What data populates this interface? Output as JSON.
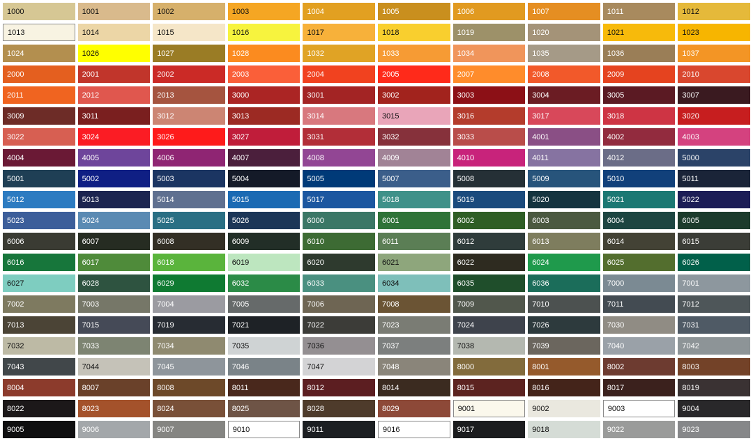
{
  "rows": [
    [
      {
        "code": "1000",
        "color": "#d6c794",
        "dark": true
      },
      {
        "code": "1001",
        "color": "#d9ba8c",
        "dark": true
      },
      {
        "code": "1002",
        "color": "#d6b06b",
        "dark": true
      },
      {
        "code": "1003",
        "color": "#f5a623",
        "dark": true
      },
      {
        "code": "1004",
        "color": "#e2a021"
      },
      {
        "code": "1005",
        "color": "#c98f1e"
      },
      {
        "code": "1006",
        "color": "#e19a20"
      },
      {
        "code": "1007",
        "color": "#e58e22"
      },
      {
        "code": "1011",
        "color": "#a88a5e"
      },
      {
        "code": "1012",
        "color": "#e5b93a",
        "dark": true
      }
    ],
    [
      {
        "code": "1013",
        "color": "#f8f3e2",
        "dark": true,
        "bordered": true
      },
      {
        "code": "1014",
        "color": "#ecd6a6",
        "dark": true
      },
      {
        "code": "1015",
        "color": "#f5e6c8",
        "dark": true
      },
      {
        "code": "1016",
        "color": "#f7f33e",
        "dark": true
      },
      {
        "code": "1017",
        "color": "#f7b13a",
        "dark": true
      },
      {
        "code": "1018",
        "color": "#f9cf2e",
        "dark": true
      },
      {
        "code": "1019",
        "color": "#9d9169"
      },
      {
        "code": "1020",
        "color": "#a49378"
      },
      {
        "code": "1021",
        "color": "#f7ba0b",
        "dark": true
      },
      {
        "code": "1023",
        "color": "#f7b500",
        "dark": true
      }
    ],
    [
      {
        "code": "1024",
        "color": "#b38f4f"
      },
      {
        "code": "1026",
        "color": "#ffff00",
        "dark": true
      },
      {
        "code": "1027",
        "color": "#9a7c25"
      },
      {
        "code": "1028",
        "color": "#fb8b1f"
      },
      {
        "code": "1032",
        "color": "#e0a325"
      },
      {
        "code": "1033",
        "color": "#f69b34"
      },
      {
        "code": "1034",
        "color": "#f0955b"
      },
      {
        "code": "1035",
        "color": "#a59a87"
      },
      {
        "code": "1036",
        "color": "#9a7e57"
      },
      {
        "code": "1037",
        "color": "#f39525"
      }
    ],
    [
      {
        "code": "2000",
        "color": "#e45f1f"
      },
      {
        "code": "2001",
        "color": "#c1352b"
      },
      {
        "code": "2002",
        "color": "#cb2a26"
      },
      {
        "code": "2003",
        "color": "#fa5f39"
      },
      {
        "code": "2004",
        "color": "#f1421f"
      },
      {
        "code": "2005",
        "color": "#ff2a1a"
      },
      {
        "code": "2007",
        "color": "#ff8c2b"
      },
      {
        "code": "2008",
        "color": "#f2592a"
      },
      {
        "code": "2009",
        "color": "#e5431f"
      },
      {
        "code": "2010",
        "color": "#d9472e"
      }
    ],
    [
      {
        "code": "2011",
        "color": "#f06420"
      },
      {
        "code": "2012",
        "color": "#e0574e"
      },
      {
        "code": "2013",
        "color": "#a5543f"
      },
      {
        "code": "3000",
        "color": "#ab2524"
      },
      {
        "code": "3001",
        "color": "#a32424"
      },
      {
        "code": "3002",
        "color": "#a2231d"
      },
      {
        "code": "3003",
        "color": "#8c1016"
      },
      {
        "code": "3004",
        "color": "#6b1c23"
      },
      {
        "code": "3005",
        "color": "#5b1a23"
      },
      {
        "code": "3007",
        "color": "#3a1a20"
      }
    ],
    [
      {
        "code": "3009",
        "color": "#6d2c27"
      },
      {
        "code": "3011",
        "color": "#7a1f1f"
      },
      {
        "code": "3012",
        "color": "#cc8573"
      },
      {
        "code": "3013",
        "color": "#9c2a23"
      },
      {
        "code": "3014",
        "color": "#d8787e"
      },
      {
        "code": "3015",
        "color": "#e9a5b9",
        "dark": true
      },
      {
        "code": "3016",
        "color": "#b43c2c"
      },
      {
        "code": "3017",
        "color": "#d8485a"
      },
      {
        "code": "3018",
        "color": "#ce3444"
      },
      {
        "code": "3020",
        "color": "#c71e1f"
      }
    ],
    [
      {
        "code": "3022",
        "color": "#d75f52"
      },
      {
        "code": "3024",
        "color": "#fb1c24"
      },
      {
        "code": "3026",
        "color": "#fe1b1b"
      },
      {
        "code": "3027",
        "color": "#c01d3a"
      },
      {
        "code": "3031",
        "color": "#b22e38"
      },
      {
        "code": "3032",
        "color": "#86313b"
      },
      {
        "code": "3033",
        "color": "#b94d4a"
      },
      {
        "code": "4001",
        "color": "#8a4f85"
      },
      {
        "code": "4002",
        "color": "#922b3e"
      },
      {
        "code": "4003",
        "color": "#d4427f"
      }
    ],
    [
      {
        "code": "4004",
        "color": "#6a1935"
      },
      {
        "code": "4005",
        "color": "#6e459b"
      },
      {
        "code": "4006",
        "color": "#8f2573"
      },
      {
        "code": "4007",
        "color": "#4b1f3c"
      },
      {
        "code": "4008",
        "color": "#924694"
      },
      {
        "code": "4009",
        "color": "#a18396"
      },
      {
        "code": "4010",
        "color": "#c8237b"
      },
      {
        "code": "4011",
        "color": "#8673a1"
      },
      {
        "code": "4012",
        "color": "#6b6d87"
      },
      {
        "code": "5000",
        "color": "#2b4368"
      }
    ],
    [
      {
        "code": "5001",
        "color": "#1f3f55"
      },
      {
        "code": "5002",
        "color": "#0f1f84"
      },
      {
        "code": "5003",
        "color": "#1b3562"
      },
      {
        "code": "5004",
        "color": "#141a28"
      },
      {
        "code": "5005",
        "color": "#003a78"
      },
      {
        "code": "5007",
        "color": "#3b5e8a"
      },
      {
        "code": "5008",
        "color": "#253036"
      },
      {
        "code": "5009",
        "color": "#27547b"
      },
      {
        "code": "5010",
        "color": "#11407a"
      },
      {
        "code": "5011",
        "color": "#1a2438"
      }
    ],
    [
      {
        "code": "5012",
        "color": "#2c7bc1"
      },
      {
        "code": "5013",
        "color": "#1c2550"
      },
      {
        "code": "5014",
        "color": "#5f7090"
      },
      {
        "code": "5015",
        "color": "#1b6ab3"
      },
      {
        "code": "5017",
        "color": "#1c57a0"
      },
      {
        "code": "5018",
        "color": "#3f9189"
      },
      {
        "code": "5019",
        "color": "#1b4b7d"
      },
      {
        "code": "5020",
        "color": "#15343f"
      },
      {
        "code": "5021",
        "color": "#1c7873"
      },
      {
        "code": "5022",
        "color": "#1c1d56"
      }
    ],
    [
      {
        "code": "5023",
        "color": "#3c5e9a"
      },
      {
        "code": "5024",
        "color": "#5a8ab3"
      },
      {
        "code": "5025",
        "color": "#2a6f84"
      },
      {
        "code": "5026",
        "color": "#1c3657"
      },
      {
        "code": "6000",
        "color": "#3b7766"
      },
      {
        "code": "6001",
        "color": "#2f7338"
      },
      {
        "code": "6002",
        "color": "#2f5e25"
      },
      {
        "code": "6003",
        "color": "#4b5940"
      },
      {
        "code": "6004",
        "color": "#1d4541"
      },
      {
        "code": "6005",
        "color": "#1c3b2c"
      }
    ],
    [
      {
        "code": "6006",
        "color": "#3a3b33"
      },
      {
        "code": "6007",
        "color": "#262c22"
      },
      {
        "code": "6008",
        "color": "#332f25"
      },
      {
        "code": "6009",
        "color": "#222e27"
      },
      {
        "code": "6010",
        "color": "#3d6b34"
      },
      {
        "code": "6011",
        "color": "#5b7e55"
      },
      {
        "code": "6012",
        "color": "#2f3c3b"
      },
      {
        "code": "6013",
        "color": "#7e7d5e"
      },
      {
        "code": "6014",
        "color": "#434235"
      },
      {
        "code": "6015",
        "color": "#3b3d37"
      }
    ],
    [
      {
        "code": "6016",
        "color": "#17763b"
      },
      {
        "code": "6017",
        "color": "#4f8b3a"
      },
      {
        "code": "6018",
        "color": "#5ab43c"
      },
      {
        "code": "6019",
        "color": "#bde6bf",
        "dark": true
      },
      {
        "code": "6020",
        "color": "#2e3a2e"
      },
      {
        "code": "6021",
        "color": "#8ea67c",
        "dark": true
      },
      {
        "code": "6022",
        "color": "#2e2b20"
      },
      {
        "code": "6024",
        "color": "#1f9a4c"
      },
      {
        "code": "6025",
        "color": "#536e2e"
      },
      {
        "code": "6026",
        "color": "#01604a"
      }
    ],
    [
      {
        "code": "6027",
        "color": "#7ecdc0",
        "dark": true
      },
      {
        "code": "6028",
        "color": "#2e5340"
      },
      {
        "code": "6029",
        "color": "#0f7a32"
      },
      {
        "code": "6032",
        "color": "#2b8b47"
      },
      {
        "code": "6033",
        "color": "#4a9080"
      },
      {
        "code": "6034",
        "color": "#7ebfba",
        "dark": true
      },
      {
        "code": "6035",
        "color": "#1f4e2b"
      },
      {
        "code": "6036",
        "color": "#1b6d5a"
      },
      {
        "code": "7000",
        "color": "#7b8a93"
      },
      {
        "code": "7001",
        "color": "#8d979e"
      }
    ],
    [
      {
        "code": "7002",
        "color": "#7e7a60"
      },
      {
        "code": "7003",
        "color": "#767768"
      },
      {
        "code": "7004",
        "color": "#9b9ba1"
      },
      {
        "code": "7005",
        "color": "#666a6a"
      },
      {
        "code": "7006",
        "color": "#6e6553"
      },
      {
        "code": "7008",
        "color": "#6b5434"
      },
      {
        "code": "7009",
        "color": "#51574c"
      },
      {
        "code": "7010",
        "color": "#4c5150"
      },
      {
        "code": "7011",
        "color": "#434b52"
      },
      {
        "code": "7012",
        "color": "#4e5659"
      }
    ],
    [
      {
        "code": "7013",
        "color": "#4b4436"
      },
      {
        "code": "7015",
        "color": "#454a57"
      },
      {
        "code": "7019",
        "color": "#272c33"
      },
      {
        "code": "7021",
        "color": "#1e2226"
      },
      {
        "code": "7022",
        "color": "#3c3c38"
      },
      {
        "code": "7023",
        "color": "#7a7c74"
      },
      {
        "code": "7024",
        "color": "#3e434c"
      },
      {
        "code": "7026",
        "color": "#2d3a3d"
      },
      {
        "code": "7030",
        "color": "#908c84"
      },
      {
        "code": "7031",
        "color": "#4f5a65"
      }
    ],
    [
      {
        "code": "7032",
        "color": "#bdbaa5",
        "dark": true
      },
      {
        "code": "7033",
        "color": "#7d8472"
      },
      {
        "code": "7034",
        "color": "#8f8a70"
      },
      {
        "code": "7035",
        "color": "#cfd3d4",
        "dark": true
      },
      {
        "code": "7036",
        "color": "#948f92",
        "dark": true
      },
      {
        "code": "7037",
        "color": "#7c7f7e"
      },
      {
        "code": "7038",
        "color": "#b4b8b0",
        "dark": true
      },
      {
        "code": "7039",
        "color": "#6b665e"
      },
      {
        "code": "7040",
        "color": "#9aa1a8"
      },
      {
        "code": "7042",
        "color": "#8d9497"
      }
    ],
    [
      {
        "code": "7043",
        "color": "#41474a"
      },
      {
        "code": "7044",
        "color": "#c5c2b8",
        "dark": true
      },
      {
        "code": "7045",
        "color": "#8e959b"
      },
      {
        "code": "7046",
        "color": "#7a8388"
      },
      {
        "code": "7047",
        "color": "#d3d3d5",
        "dark": true
      },
      {
        "code": "7048",
        "color": "#8a857a"
      },
      {
        "code": "8000",
        "color": "#826b3c"
      },
      {
        "code": "8001",
        "color": "#955a2c"
      },
      {
        "code": "8002",
        "color": "#6d3b30"
      },
      {
        "code": "8003",
        "color": "#734228"
      }
    ],
    [
      {
        "code": "8004",
        "color": "#8c3b2c"
      },
      {
        "code": "8007",
        "color": "#6a412a"
      },
      {
        "code": "8008",
        "color": "#6d4929"
      },
      {
        "code": "8011",
        "color": "#49281c"
      },
      {
        "code": "8012",
        "color": "#5c1e21"
      },
      {
        "code": "8014",
        "color": "#3b2b20"
      },
      {
        "code": "8015",
        "color": "#5c2320"
      },
      {
        "code": "8016",
        "color": "#44241a"
      },
      {
        "code": "8017",
        "color": "#3b211d"
      },
      {
        "code": "8019",
        "color": "#3a3233"
      }
    ],
    [
      {
        "code": "8022",
        "color": "#1c1819"
      },
      {
        "code": "8023",
        "color": "#a4522b"
      },
      {
        "code": "8024",
        "color": "#795038"
      },
      {
        "code": "8025",
        "color": "#6e5446"
      },
      {
        "code": "8028",
        "color": "#4e3b2b"
      },
      {
        "code": "8029",
        "color": "#8d4938"
      },
      {
        "code": "9001",
        "color": "#fbf8ec",
        "dark": true,
        "bordered": true
      },
      {
        "code": "9002",
        "color": "#eae8df",
        "dark": true
      },
      {
        "code": "9003",
        "color": "#ffffff",
        "dark": true,
        "bordered": true
      },
      {
        "code": "9004",
        "color": "#29282a"
      }
    ],
    [
      {
        "code": "9005",
        "color": "#0f0f10"
      },
      {
        "code": "9006",
        "color": "#a3a7aa"
      },
      {
        "code": "9007",
        "color": "#858582"
      },
      {
        "code": "9010",
        "color": "#ffffff",
        "dark": true,
        "bordered": true
      },
      {
        "code": "9011",
        "color": "#1c1f22"
      },
      {
        "code": "9016",
        "color": "#ffffff",
        "dark": true,
        "bordered": true
      },
      {
        "code": "9017",
        "color": "#1b1c1e"
      },
      {
        "code": "9018",
        "color": "#d5dcd6",
        "dark": true
      },
      {
        "code": "9022",
        "color": "#9a9b9a"
      },
      {
        "code": "9023",
        "color": "#868789"
      }
    ]
  ]
}
